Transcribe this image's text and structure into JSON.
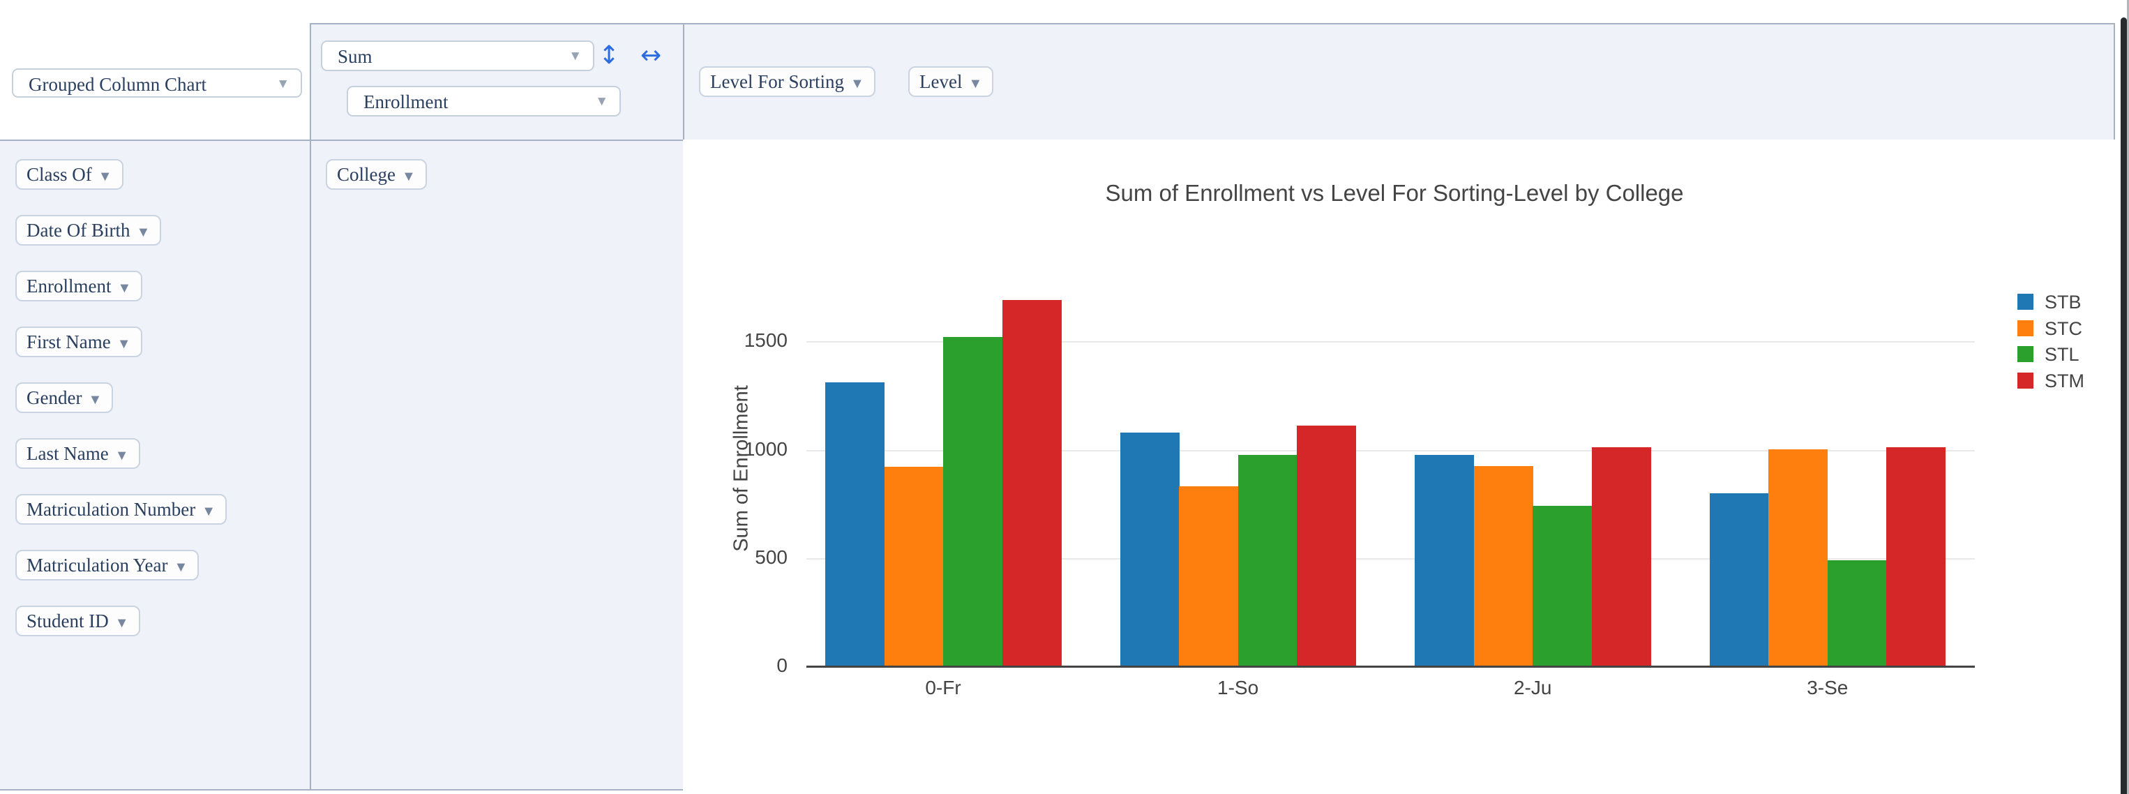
{
  "renderer": {
    "selected": "Grouped Column Chart"
  },
  "aggregator": {
    "selected": "Sum",
    "argument": "Enrollment",
    "swap_rows_cols_icon": "↕",
    "swap_horizontal_icon": "↔"
  },
  "col_attrs": [
    "Level For Sorting",
    "Level"
  ],
  "row_attrs": [
    "College"
  ],
  "unused_attrs": [
    "Class Of",
    "Date Of Birth",
    "Enrollment",
    "First Name",
    "Gender",
    "Last Name",
    "Matriculation Number",
    "Matriculation Year",
    "Student ID"
  ],
  "pill_caret": "▼",
  "select_caret": "▼",
  "colors": {
    "ui_text": "#2a3f5f",
    "cell_background": "#eff3f9",
    "cell_border": "#a6b2c3",
    "swap_icon_blue": "#2d6ce0",
    "axis_text": "#444444"
  },
  "chart_data": {
    "type": "bar",
    "title": "Sum of Enrollment vs Level For Sorting-Level by College",
    "categories": [
      "0-Fr",
      "1-So",
      "2-Ju",
      "3-Se"
    ],
    "series": [
      {
        "name": "STB",
        "color": "#1f77b4",
        "values": [
          1310,
          1080,
          975,
          800
        ]
      },
      {
        "name": "STC",
        "color": "#ff7f0e",
        "values": [
          920,
          830,
          925,
          1000
        ]
      },
      {
        "name": "STL",
        "color": "#2ca02c",
        "values": [
          1520,
          975,
          740,
          490
        ]
      },
      {
        "name": "STM",
        "color": "#d62728",
        "values": [
          1690,
          1110,
          1010,
          1010
        ]
      }
    ],
    "xlabel": "",
    "ylabel": "Sum of Enrollment",
    "yticks": [
      0,
      500,
      1000,
      1500
    ],
    "ylim": [
      0,
      1741
    ],
    "grid": true,
    "legend_position": "right"
  }
}
